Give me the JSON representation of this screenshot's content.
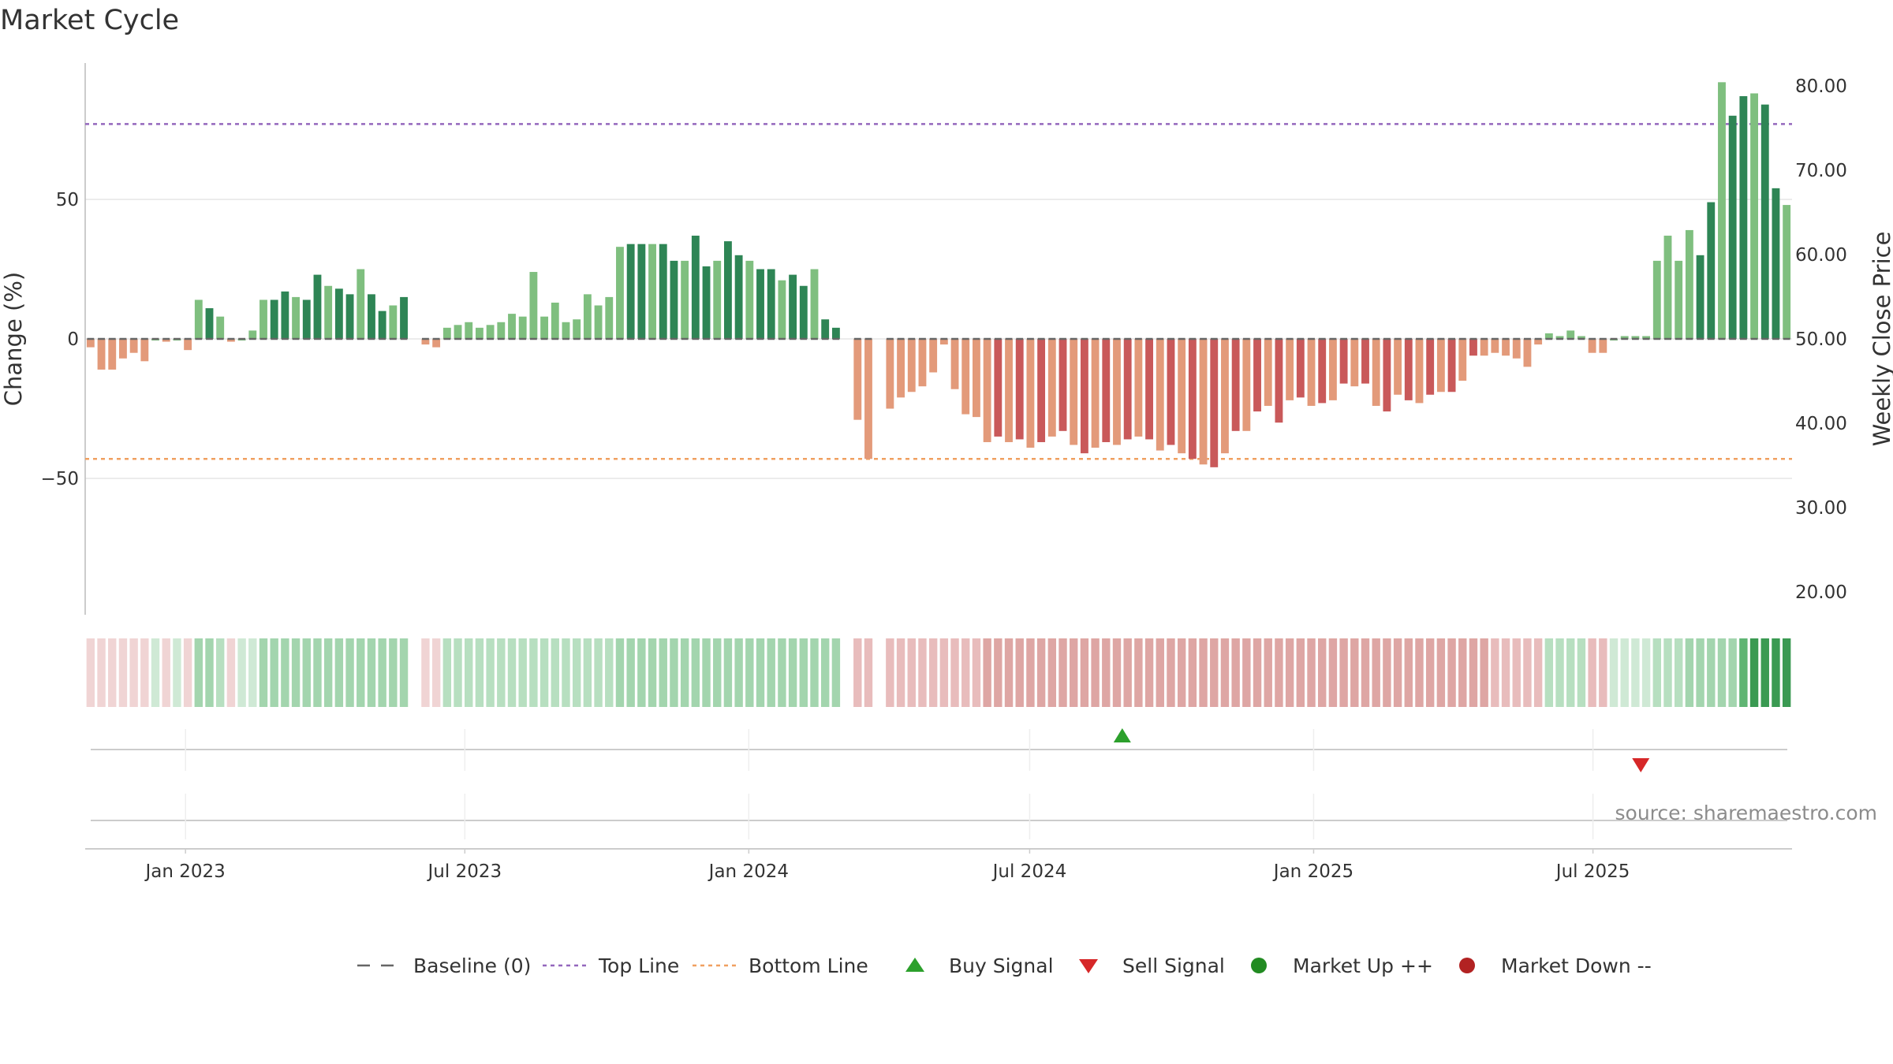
{
  "title": "Market Cycle",
  "source": "source: sharemaestro.com",
  "colors": {
    "bar_up_strong": "#2e8555",
    "bar_up_weak": "#7fbf7f",
    "bar_down_strong": "#c9595a",
    "bar_down_weak": "#e39a7a",
    "top_line": "#9467bd",
    "bottom_line": "#f0a060",
    "baseline": "#666666",
    "buy": "#2ca02c",
    "sell": "#d62728",
    "market_up": "#228b22",
    "market_down": "#b22222"
  },
  "chart_data": {
    "type": "bar",
    "title": "Market Cycle",
    "ylabel": "Change (%)",
    "y2label": "Weekly Close Price",
    "ylim": [
      -100,
      100
    ],
    "y2lim": [
      20,
      85
    ],
    "yticks": [
      "50",
      "0",
      "−50"
    ],
    "y2ticks": [
      "80.00",
      "70.00",
      "60.00",
      "50.00",
      "40.00",
      "30.00",
      "20.00"
    ],
    "xtick_labels": [
      "Jan 2023",
      "Jul 2023",
      "Jan 2024",
      "Jul 2024",
      "Jan 2025",
      "Jul 2025"
    ],
    "xtick_dates": [
      "2023-01-01",
      "2023-07-01",
      "2024-01-01",
      "2024-07-01",
      "2025-01-01",
      "2025-07-01"
    ],
    "x_start": "2022-10-28",
    "week_days": 7,
    "top_line": 77,
    "bottom_line": -43,
    "baseline": 0,
    "values": [
      -3,
      -11,
      -11,
      -7,
      -5,
      -8,
      0,
      -1,
      0,
      -4,
      14,
      11,
      8,
      -1,
      0,
      3,
      14,
      14,
      17,
      15,
      14,
      23,
      19,
      18,
      16,
      25,
      16,
      10,
      12,
      15,
      null,
      -2,
      -3,
      4,
      5,
      6,
      4,
      5,
      6,
      9,
      8,
      24,
      8,
      13,
      6,
      7,
      16,
      12,
      15,
      33,
      34,
      34,
      34,
      34,
      28,
      28,
      37,
      26,
      28,
      35,
      30,
      28,
      25,
      25,
      21,
      23,
      19,
      25,
      7,
      4,
      null,
      -29,
      -43,
      null,
      -25,
      -21,
      -19,
      -17,
      -12,
      -2,
      -18,
      -27,
      -28,
      -37,
      -35,
      -37,
      -36,
      -39,
      -37,
      -35,
      -33,
      -38,
      -41,
      -39,
      -37,
      -38,
      -36,
      -35,
      -36,
      -40,
      -38,
      -41,
      -43,
      -45,
      -46,
      -41,
      -33,
      -33,
      -26,
      -24,
      -30,
      -22,
      -21,
      -24,
      -23,
      -22,
      -16,
      -17,
      -16,
      -24,
      -26,
      -20,
      -22,
      -23,
      -20,
      -19,
      -19,
      -15,
      -6,
      -6,
      -5,
      -6,
      -7,
      -10,
      -2,
      2,
      1,
      3,
      1,
      -5,
      -5,
      0,
      1,
      1,
      1,
      28,
      37,
      28,
      39,
      30,
      49,
      92,
      80,
      87,
      88,
      84,
      54,
      48
    ],
    "intensity": [
      1,
      1,
      1,
      1,
      1,
      1,
      1,
      1,
      1,
      1,
      3,
      3,
      2,
      1,
      1,
      1,
      3,
      3,
      3,
      3,
      3,
      3,
      3,
      3,
      3,
      3,
      3,
      3,
      3,
      3,
      1,
      1,
      1,
      2,
      2,
      2,
      2,
      2,
      2,
      2,
      2,
      2,
      2,
      2,
      2,
      2,
      2,
      2,
      2,
      3,
      3,
      3,
      3,
      3,
      3,
      3,
      3,
      3,
      3,
      3,
      3,
      3,
      3,
      3,
      3,
      3,
      3,
      3,
      3,
      3,
      0,
      2,
      2,
      0,
      2,
      2,
      2,
      2,
      2,
      2,
      2,
      2,
      2,
      3,
      3,
      3,
      3,
      3,
      3,
      3,
      3,
      3,
      3,
      3,
      3,
      3,
      3,
      3,
      3,
      3,
      3,
      3,
      3,
      3,
      3,
      3,
      3,
      3,
      3,
      3,
      3,
      3,
      3,
      3,
      3,
      3,
      3,
      3,
      3,
      3,
      3,
      3,
      3,
      3,
      3,
      3,
      3,
      3,
      3,
      3,
      2,
      2,
      2,
      2,
      2,
      2,
      2,
      2,
      2,
      2,
      2,
      1,
      1,
      1,
      1,
      2,
      2,
      2,
      3,
      3,
      3,
      3,
      3,
      4,
      5,
      5,
      5,
      5,
      5,
      4,
      3
    ],
    "signals": [
      {
        "type": "buy",
        "date": "2024-08-30"
      },
      {
        "type": "sell",
        "date": "2025-08-01"
      }
    ]
  },
  "legend": [
    {
      "key": "baseline",
      "label": "Baseline (0)"
    },
    {
      "key": "top_line",
      "label": "Top Line"
    },
    {
      "key": "bottom_line",
      "label": "Bottom Line"
    },
    {
      "key": "buy",
      "label": "Buy Signal"
    },
    {
      "key": "sell",
      "label": "Sell Signal"
    },
    {
      "key": "market_up",
      "label": "Market Up ++"
    },
    {
      "key": "market_down",
      "label": "Market Down --"
    }
  ]
}
